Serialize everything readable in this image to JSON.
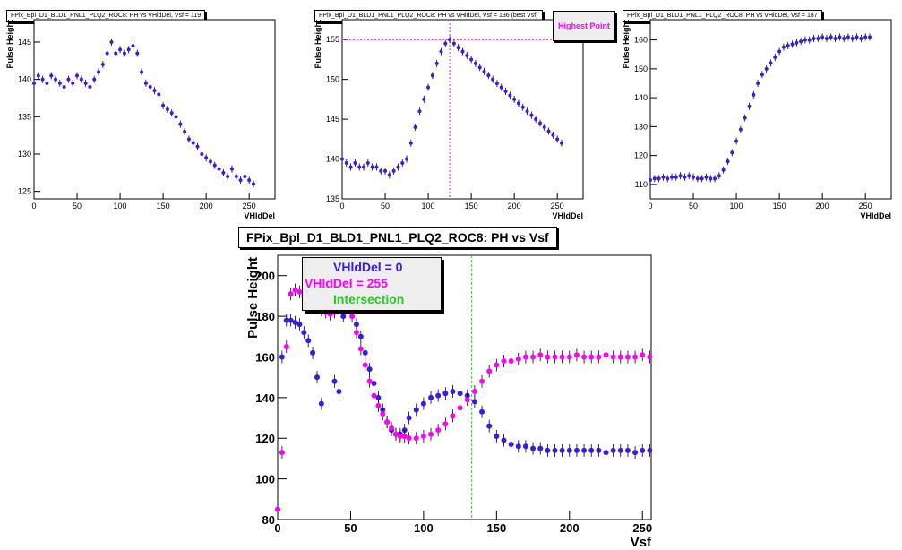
{
  "chart_data": [
    {
      "type": "scatter",
      "title": "FPix_Bpl_D1_BLD1_PNL1_PLQ2_ROC8: PH vs VHldDel, Vsf = 119",
      "xlabel": "VHldDel",
      "ylabel": "Pulse Height",
      "xlim": [
        0,
        280
      ],
      "ylim": [
        124,
        148
      ],
      "xticks": [
        0,
        50,
        100,
        150,
        200,
        250
      ],
      "yticks": [
        125,
        130,
        135,
        140,
        145
      ],
      "color": "#3a1ce0",
      "x": [
        0,
        5,
        10,
        15,
        20,
        25,
        30,
        35,
        40,
        45,
        50,
        55,
        60,
        65,
        70,
        75,
        80,
        85,
        90,
        95,
        100,
        105,
        110,
        115,
        120,
        125,
        130,
        135,
        140,
        145,
        150,
        155,
        160,
        165,
        170,
        175,
        180,
        185,
        190,
        195,
        200,
        205,
        210,
        215,
        220,
        225,
        230,
        235,
        240,
        245,
        250,
        255
      ],
      "y": [
        139.5,
        140.5,
        140,
        139.5,
        140.5,
        140,
        139.5,
        139,
        140,
        139.5,
        140.5,
        140,
        139.5,
        139,
        140,
        141,
        142,
        143.5,
        145,
        143.5,
        144,
        143.5,
        144,
        144.5,
        143.5,
        141,
        139.5,
        139,
        138.5,
        138,
        136.5,
        136,
        135.5,
        135,
        134,
        133,
        132,
        131.5,
        131,
        130,
        129.5,
        129,
        128.5,
        128,
        127.5,
        127,
        128,
        127,
        126.5,
        127,
        126.5,
        126
      ]
    },
    {
      "type": "scatter",
      "title": "FPix_Bpl_D1_BLD1_PNL1_PLQ2_ROC8: PH vs VHldDel, Vsf = 136 (best Vsf)",
      "xlabel": "VHldDel",
      "ylabel": "Pulse Height",
      "xlim": [
        0,
        280
      ],
      "ylim": [
        135,
        157.5
      ],
      "xticks": [
        0,
        50,
        100,
        150,
        200,
        250
      ],
      "yticks": [
        135,
        140,
        145,
        150,
        155
      ],
      "color": "#3a1ce0",
      "highlight": {
        "x": 125,
        "y": 155,
        "color": "#ff00ff",
        "label": "Highest Point"
      },
      "x": [
        0,
        5,
        10,
        15,
        20,
        25,
        30,
        35,
        40,
        45,
        50,
        55,
        60,
        65,
        70,
        75,
        80,
        85,
        90,
        95,
        100,
        105,
        110,
        115,
        120,
        125,
        130,
        135,
        140,
        145,
        150,
        155,
        160,
        165,
        170,
        175,
        180,
        185,
        190,
        195,
        200,
        205,
        210,
        215,
        220,
        225,
        230,
        235,
        240,
        245,
        250,
        255
      ],
      "y": [
        140,
        139.5,
        139,
        139.5,
        139,
        139,
        139.5,
        139,
        139,
        138.5,
        138.5,
        138,
        138.5,
        139,
        139.5,
        140,
        142,
        144,
        146,
        147.5,
        149,
        150.5,
        152,
        153.5,
        154.5,
        155,
        154.5,
        154,
        153.5,
        153,
        152.5,
        152,
        151.5,
        151,
        150.5,
        150,
        149.5,
        149,
        148.5,
        148,
        147.5,
        147,
        146.5,
        146,
        145.5,
        145,
        144.5,
        144,
        143.5,
        143,
        142.5,
        142
      ]
    },
    {
      "type": "scatter",
      "title": "FPix_Bpl_D1_BLD1_PNL1_PLQ2_ROC8: PH vs VHldDel, Vsf = 187",
      "xlabel": "VHldDel",
      "ylabel": "Pulse Height",
      "xlim": [
        0,
        280
      ],
      "ylim": [
        105,
        167
      ],
      "xticks": [
        0,
        50,
        100,
        150,
        200,
        250
      ],
      "yticks": [
        110,
        120,
        130,
        140,
        150,
        160
      ],
      "color": "#3a1ce0",
      "x": [
        0,
        5,
        10,
        15,
        20,
        25,
        30,
        35,
        40,
        45,
        50,
        55,
        60,
        65,
        70,
        75,
        80,
        85,
        90,
        95,
        100,
        105,
        110,
        115,
        120,
        125,
        130,
        135,
        140,
        145,
        150,
        155,
        160,
        165,
        170,
        175,
        180,
        185,
        190,
        195,
        200,
        205,
        210,
        215,
        220,
        225,
        230,
        235,
        240,
        245,
        250,
        255
      ],
      "y": [
        111.5,
        112,
        112,
        112.5,
        112,
        112.5,
        112.5,
        113,
        112.5,
        113,
        112.5,
        112,
        112,
        112.5,
        112,
        112,
        113,
        115,
        118,
        121,
        125,
        129,
        133,
        137,
        141,
        145,
        148,
        150,
        152,
        154,
        156,
        157.5,
        158,
        158.5,
        159,
        159.5,
        160,
        160,
        160.5,
        160.5,
        161,
        160.5,
        161,
        160.5,
        161,
        160.5,
        161,
        160.5,
        161,
        160.5,
        161,
        161
      ]
    },
    {
      "type": "scatter",
      "title": "FPix_Bpl_D1_BLD1_PNL1_PLQ2_ROC8: PH vs Vsf",
      "xlabel": "Vsf",
      "ylabel": "Pulse Height",
      "xlim": [
        0,
        256
      ],
      "ylim": [
        80,
        210
      ],
      "xticks": [
        0,
        50,
        100,
        150,
        200,
        250
      ],
      "yticks": [
        80,
        100,
        120,
        140,
        160,
        180,
        200
      ],
      "vline": {
        "x": 133,
        "color": "#22cc22"
      },
      "legend": {
        "position": "top-left",
        "entries": [
          "VHldDel = 0",
          "VHldDel = 255",
          "Intersection"
        ]
      },
      "series": [
        {
          "name": "VHldDel = 0",
          "color": "#3a1ce0",
          "x": [
            0,
            3,
            6,
            9,
            12,
            15,
            18,
            21,
            24,
            27,
            30,
            33,
            36,
            39,
            42,
            45,
            48,
            51,
            54,
            57,
            60,
            63,
            66,
            69,
            72,
            75,
            78,
            81,
            84,
            87,
            90,
            95,
            100,
            105,
            110,
            115,
            120,
            125,
            130,
            135,
            140,
            145,
            150,
            155,
            160,
            165,
            170,
            175,
            180,
            185,
            190,
            195,
            200,
            205,
            210,
            215,
            220,
            225,
            230,
            235,
            240,
            245,
            250,
            255
          ],
          "y": [
            85,
            160,
            178,
            178,
            177,
            176,
            172,
            168,
            162,
            150,
            137,
            185,
            183,
            148,
            143,
            180,
            186,
            182,
            176,
            170,
            162,
            154,
            147,
            140,
            134,
            128,
            124,
            122,
            122,
            124,
            130,
            134,
            137,
            140,
            141,
            142,
            143,
            142,
            141,
            138,
            133,
            126,
            121,
            119,
            117,
            116,
            116,
            115,
            115,
            114,
            114,
            114,
            114,
            114,
            114,
            114,
            114,
            113,
            114,
            114,
            114,
            113,
            114,
            114
          ]
        },
        {
          "name": "VHldDel = 255",
          "color": "#ff00ff",
          "x": [
            0,
            3,
            6,
            9,
            12,
            15,
            18,
            21,
            24,
            27,
            30,
            33,
            36,
            39,
            42,
            45,
            48,
            51,
            54,
            57,
            60,
            63,
            66,
            69,
            72,
            75,
            78,
            81,
            84,
            87,
            90,
            95,
            100,
            105,
            110,
            115,
            120,
            125,
            130,
            135,
            140,
            145,
            150,
            155,
            160,
            165,
            170,
            175,
            180,
            185,
            190,
            195,
            200,
            205,
            210,
            215,
            220,
            225,
            230,
            235,
            240,
            245,
            250,
            255
          ],
          "y": [
            85,
            113,
            165,
            191,
            193,
            192,
            190,
            188,
            186,
            185,
            183,
            182,
            181,
            182,
            183,
            184,
            185,
            180,
            172,
            164,
            156,
            148,
            141,
            136,
            132,
            128,
            125,
            122,
            121,
            121,
            120,
            120,
            121,
            122,
            124,
            127,
            131,
            135,
            139,
            143,
            148,
            153,
            156,
            158,
            158,
            159,
            160,
            160,
            161,
            160,
            160,
            160,
            160,
            161,
            160,
            160,
            160,
            161,
            160,
            160,
            160,
            160,
            161,
            160
          ]
        }
      ]
    }
  ]
}
